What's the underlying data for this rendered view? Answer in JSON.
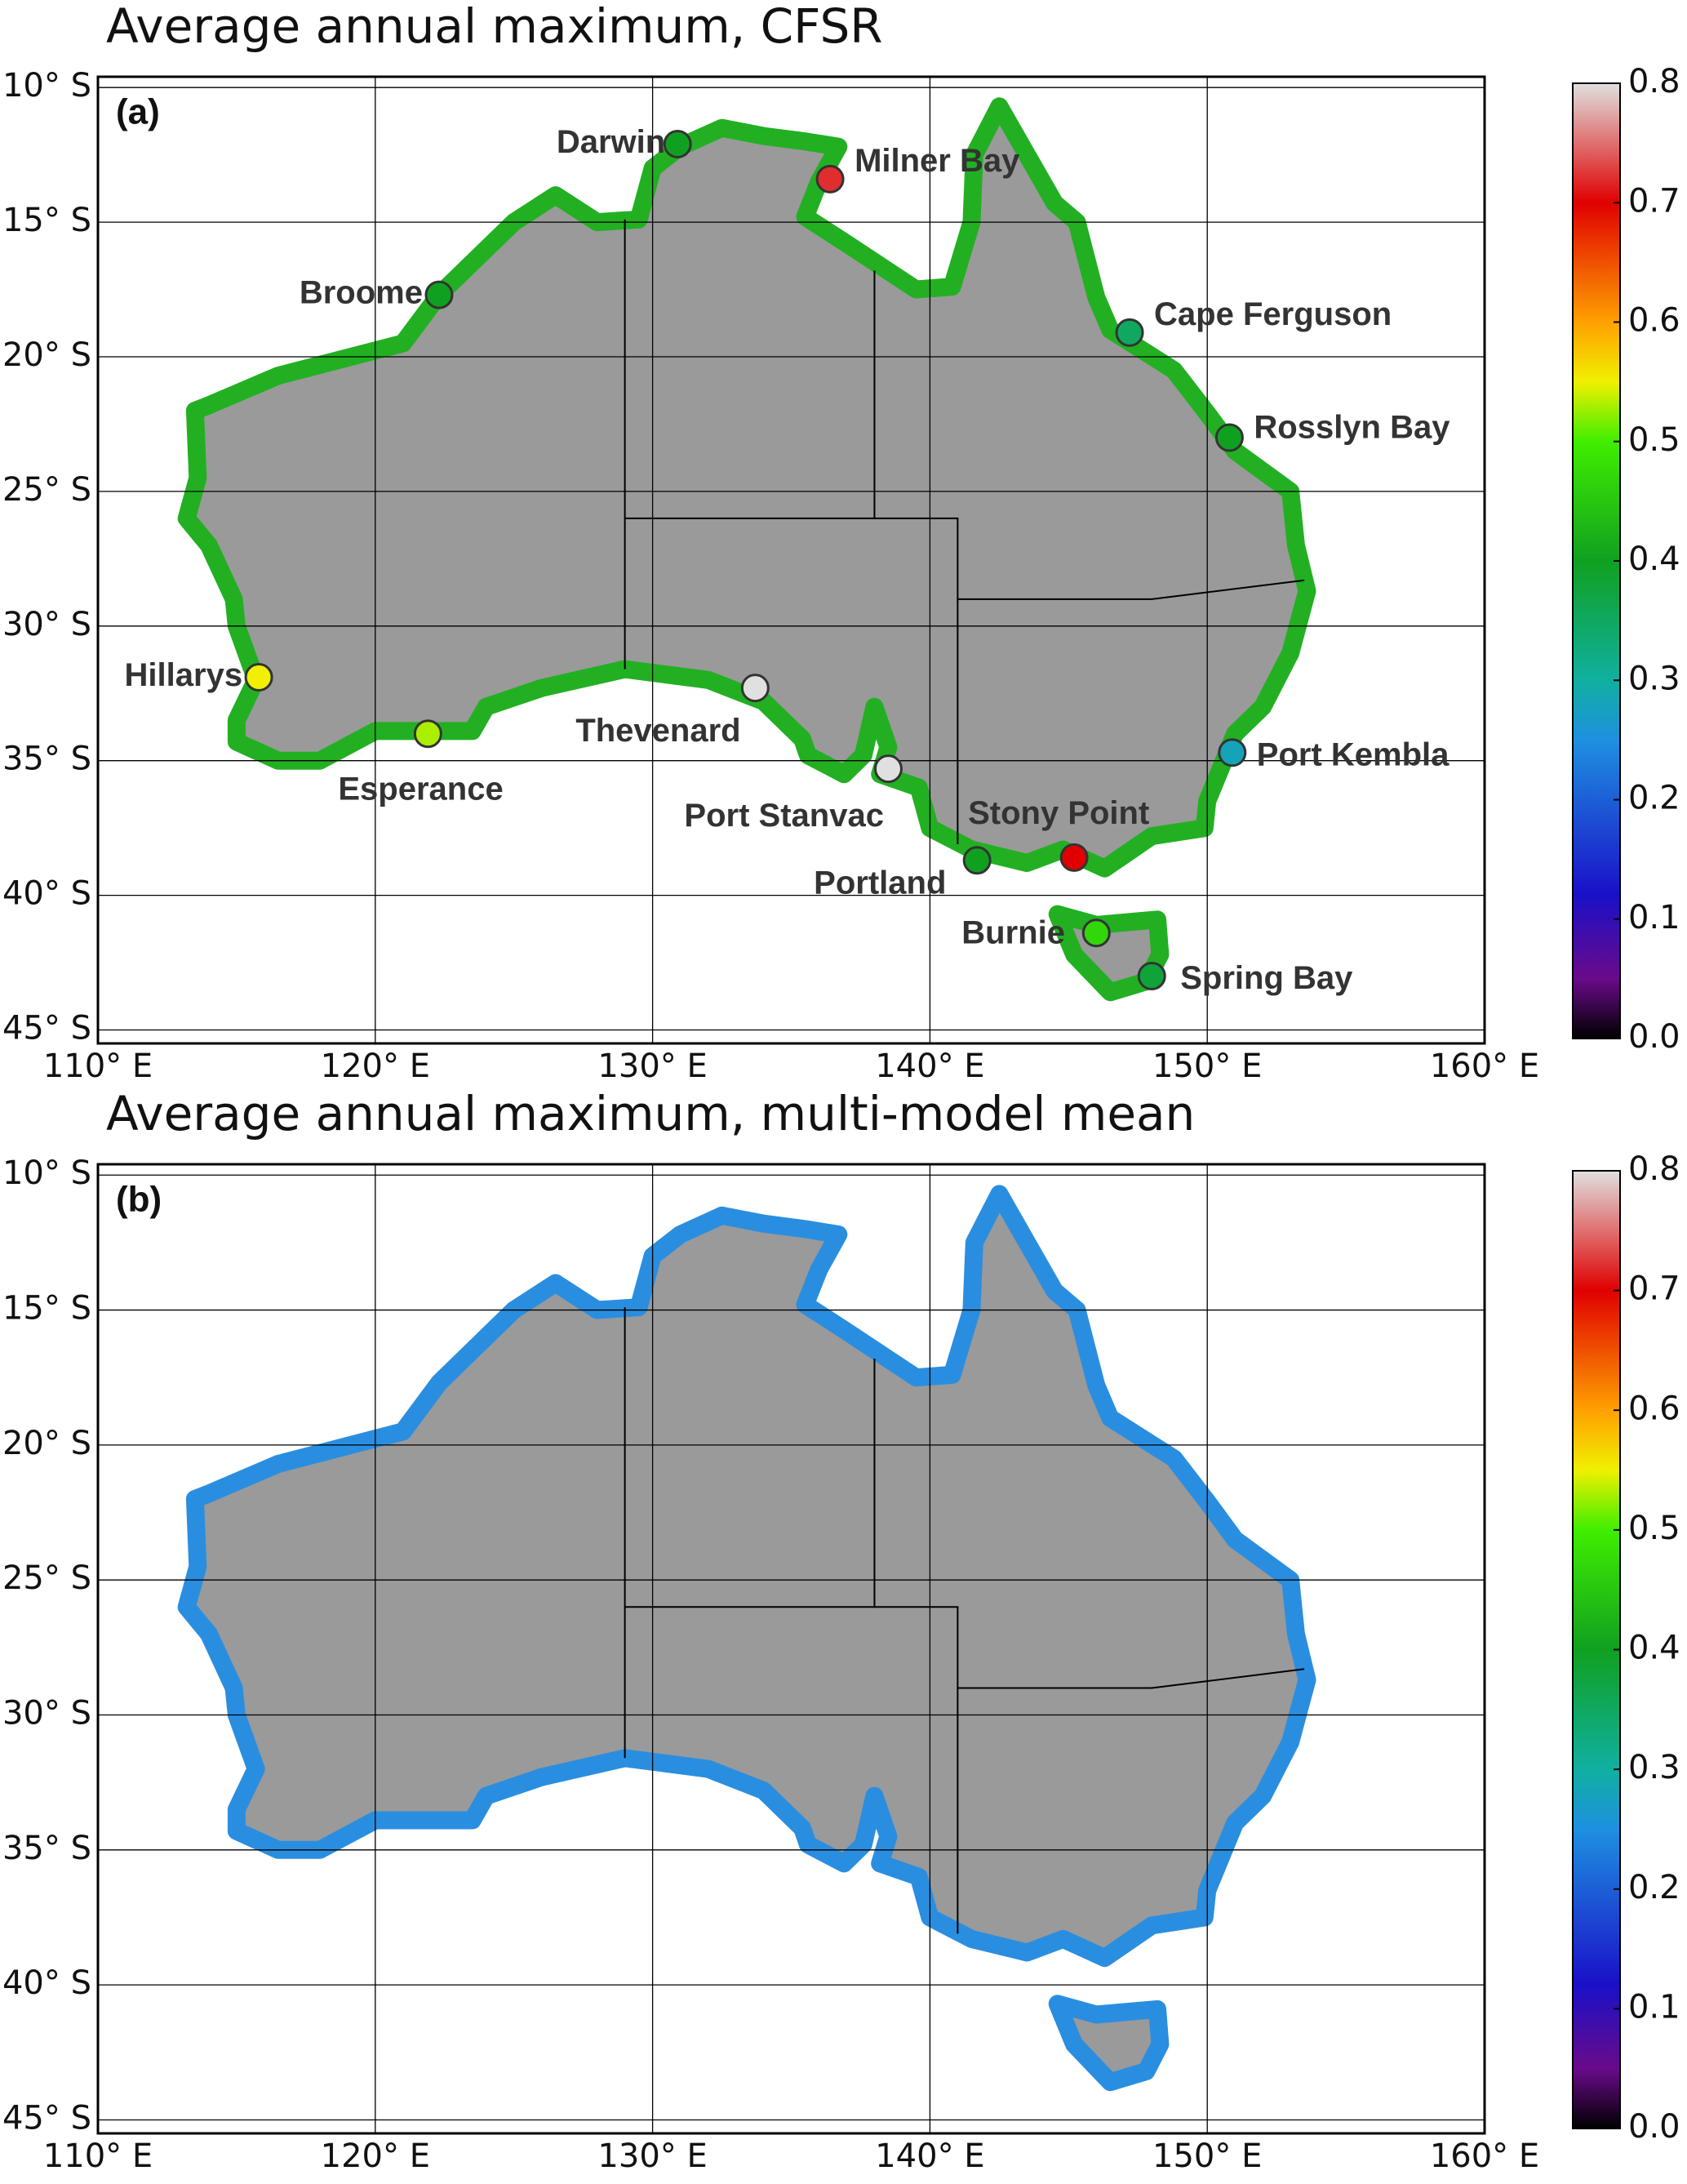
{
  "panels": [
    {
      "title": "Average annual maximum, CFSR",
      "label": "(a)",
      "stations": [
        {
          "name": "Darwin",
          "lon": 130.9,
          "lat": -12.1,
          "value": 0.4
        },
        {
          "name": "Milner Bay",
          "lon": 136.4,
          "lat": -13.4,
          "value": 0.72
        },
        {
          "name": "Broome",
          "lon": 122.3,
          "lat": -17.7,
          "value": 0.4
        },
        {
          "name": "Cape Ferguson",
          "lon": 147.2,
          "lat": -19.1,
          "value": 0.35
        },
        {
          "name": "Rosslyn Bay",
          "lon": 150.8,
          "lat": -23.0,
          "value": 0.4
        },
        {
          "name": "Hillarys",
          "lon": 115.8,
          "lat": -31.9,
          "value": 0.55
        },
        {
          "name": "Esperance",
          "lon": 121.9,
          "lat": -34.0,
          "value": 0.53
        },
        {
          "name": "Thevenard",
          "lon": 133.7,
          "lat": -32.3,
          "value": 0.8
        },
        {
          "name": "Port Stanvac",
          "lon": 138.5,
          "lat": -35.3,
          "value": 0.8
        },
        {
          "name": "Stony Point",
          "lon": 145.2,
          "lat": -38.6,
          "value": 0.7
        },
        {
          "name": "Portland",
          "lon": 141.7,
          "lat": -38.7,
          "value": 0.4
        },
        {
          "name": "Port Kembla",
          "lon": 150.9,
          "lat": -34.7,
          "value": 0.28
        },
        {
          "name": "Burnie",
          "lon": 146.0,
          "lat": -41.4,
          "value": 0.47
        },
        {
          "name": "Spring Bay",
          "lon": 148.0,
          "lat": -43.0,
          "value": 0.38
        }
      ]
    },
    {
      "title": "Average annual maximum, multi-model mean",
      "label": "(b)"
    }
  ],
  "map": {
    "xlim": [
      110,
      160
    ],
    "ylim": [
      -45.5,
      -9.6
    ],
    "xticks": [
      {
        "value": 110,
        "label": "110° E"
      },
      {
        "value": 120,
        "label": "120° E"
      },
      {
        "value": 130,
        "label": "130° E"
      },
      {
        "value": 140,
        "label": "140° E"
      },
      {
        "value": 150,
        "label": "150° E"
      },
      {
        "value": 160,
        "label": "160° E"
      }
    ],
    "yticks": [
      {
        "value": -10,
        "label": "10° S"
      },
      {
        "value": -15,
        "label": "15° S"
      },
      {
        "value": -20,
        "label": "20° S"
      },
      {
        "value": -25,
        "label": "25° S"
      },
      {
        "value": -30,
        "label": "30° S"
      },
      {
        "value": -35,
        "label": "35° S"
      },
      {
        "value": -40,
        "label": "40° S"
      },
      {
        "value": -45,
        "label": "45° S"
      }
    ],
    "grid": true
  },
  "colorbar": {
    "lim": [
      0,
      0.8
    ],
    "ticks": [
      {
        "value": 0,
        "label": "0.0"
      },
      0.1,
      0.2,
      0.3,
      0.4,
      0.5,
      0.6,
      0.7,
      0.8
    ]
  }
}
